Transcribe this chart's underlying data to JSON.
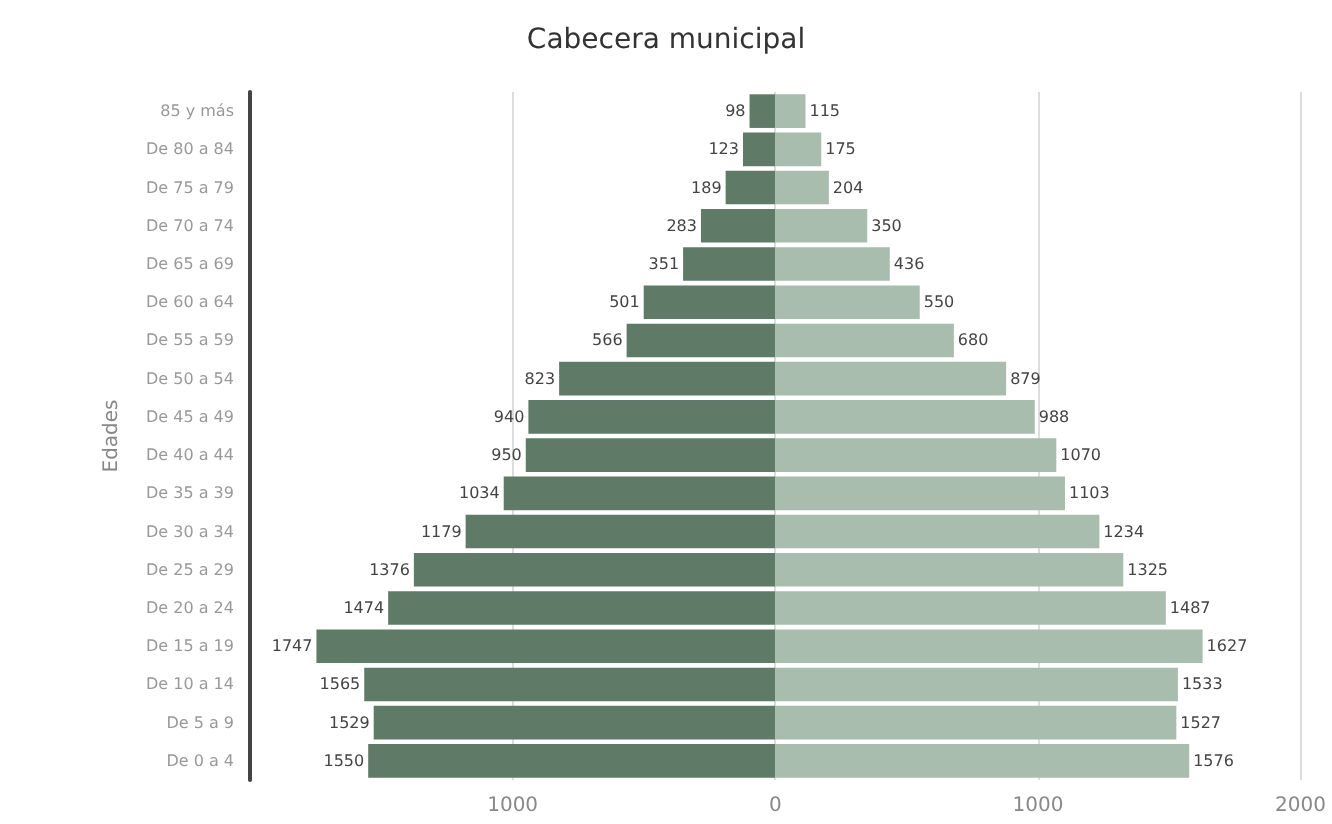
{
  "chart_data": {
    "type": "bar",
    "orientation": "horizontal",
    "title": "Cabecera municipal",
    "ylabel": "Edades",
    "categories": [
      "85 y más",
      "De 80 a 84",
      "De 75 a 79",
      "De 70 a 74",
      "De 65 a 69",
      "De 60 a 64",
      "De 55 a 59",
      "De 50 a 54",
      "De 45 a 49",
      "De 40 a 44",
      "De 35 a 39",
      "De 30 a 34",
      "De 25 a 29",
      "De 20 a 24",
      "De 15 a 19",
      "De 10 a 14",
      "De 5 a 9",
      "De 0 a 4"
    ],
    "series": [
      {
        "color": "#5f7a66",
        "values": [
          98,
          123,
          189,
          283,
          351,
          501,
          566,
          823,
          940,
          950,
          1034,
          1179,
          1376,
          1474,
          1747,
          1565,
          1529,
          1550
        ],
        "base": [
          -98,
          -123,
          -189,
          -283,
          -351,
          -501,
          -566,
          -823,
          -940,
          -950,
          -1034,
          -1179,
          -1376,
          -1474,
          -1747,
          -1565,
          -1529,
          -1550
        ]
      },
      {
        "color": "#a8bdad",
        "values": [
          115,
          175,
          204,
          350,
          436,
          550,
          680,
          879,
          988,
          1070,
          1103,
          1234,
          1325,
          1487,
          1627,
          1533,
          1527,
          1576
        ]
      }
    ],
    "xlim": [
      -2000,
      2000
    ],
    "xticks": [
      {
        "value": -1000,
        "label": "1000"
      },
      0,
      1000,
      2000
    ],
    "grid": "x",
    "data_labels": true
  }
}
